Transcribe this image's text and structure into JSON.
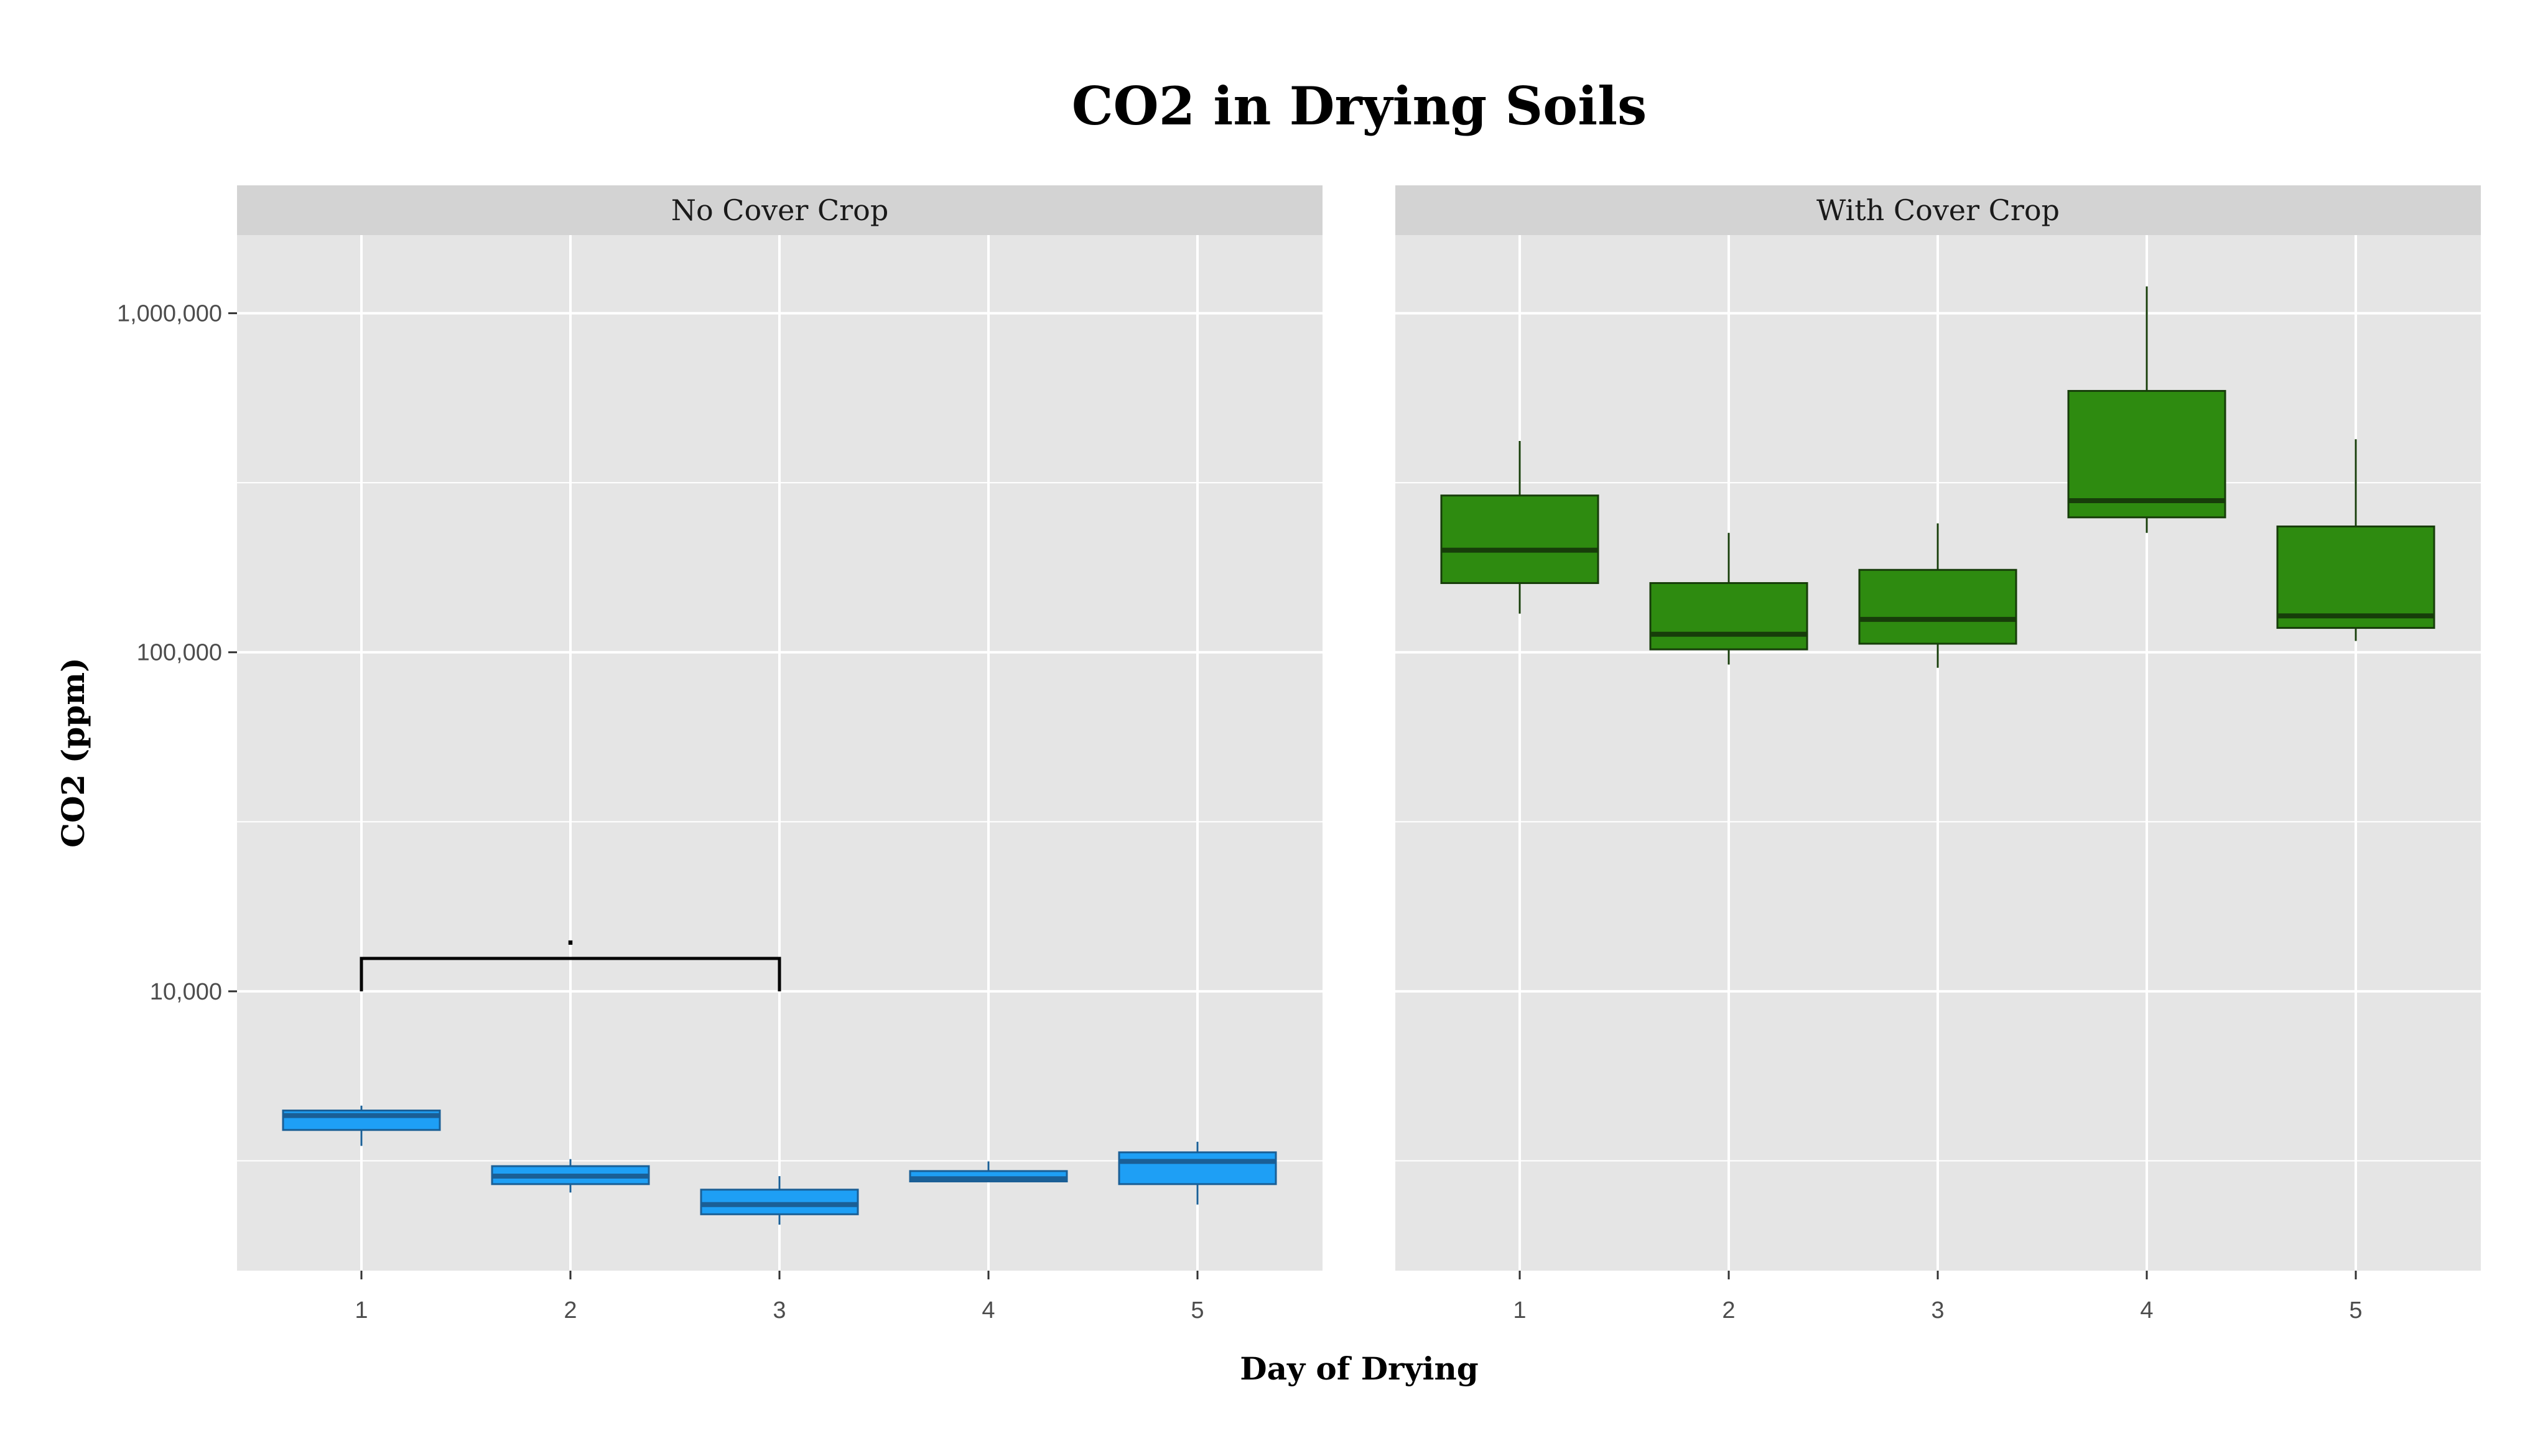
{
  "chart_data": {
    "type": "boxplot",
    "title": "CO2 in Drying Soils",
    "xlabel": "Day of Drying",
    "ylabel": "CO2 (ppm)",
    "y_scale": "log10",
    "ylim": [
      1500,
      1700000
    ],
    "y_ticks": [
      10000,
      100000,
      1000000
    ],
    "y_tick_labels": [
      "10,000",
      "100,000",
      "1,000,000"
    ],
    "categories": [
      "1",
      "2",
      "3",
      "4",
      "5"
    ],
    "grid": true,
    "legend": "none",
    "panels": [
      {
        "name": "No Cover Crop",
        "fill": "#1e9ff5",
        "stroke": "#1a5f96",
        "boxes": [
          {
            "x": "1",
            "min": 3500,
            "q1": 3900,
            "median": 4300,
            "q3": 4450,
            "max": 4600
          },
          {
            "x": "2",
            "min": 2550,
            "q1": 2700,
            "median": 2850,
            "q3": 3050,
            "max": 3200
          },
          {
            "x": "3",
            "min": 2050,
            "q1": 2200,
            "median": 2350,
            "q3": 2600,
            "max": 2850
          },
          {
            "x": "4",
            "min": 2750,
            "q1": 2750,
            "median": 2800,
            "q3": 2950,
            "max": 3150
          },
          {
            "x": "5",
            "min": 2350,
            "q1": 2700,
            "median": 3150,
            "q3": 3350,
            "max": 3600
          }
        ],
        "annotations": [
          {
            "type": "bracket",
            "from": "1",
            "to": "3",
            "y": 12500,
            "y_end": 10000,
            "label": "."
          }
        ]
      },
      {
        "name": "With Cover Crop",
        "fill": "#2e8b10",
        "stroke": "#173d0a",
        "boxes": [
          {
            "x": "1",
            "min": 130000,
            "q1": 160000,
            "median": 200000,
            "q3": 290000,
            "max": 420000
          },
          {
            "x": "2",
            "min": 92000,
            "q1": 102000,
            "median": 113000,
            "q3": 160000,
            "max": 225000
          },
          {
            "x": "3",
            "min": 90000,
            "q1": 106000,
            "median": 125000,
            "q3": 175000,
            "max": 240000
          },
          {
            "x": "4",
            "min": 225000,
            "q1": 250000,
            "median": 280000,
            "q3": 590000,
            "max": 1200000
          },
          {
            "x": "5",
            "min": 108000,
            "q1": 118000,
            "median": 128000,
            "q3": 235000,
            "max": 425000
          }
        ]
      }
    ]
  }
}
